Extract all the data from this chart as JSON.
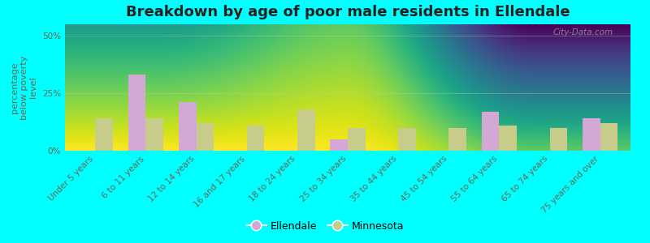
{
  "title": "Breakdown by age of poor male residents in Ellendale",
  "ylabel": "percentage\nbelow poverty\nlevel",
  "categories": [
    "Under 5 years",
    "6 to 11 years",
    "12 to 14 years",
    "16 and 17 years",
    "18 to 24 years",
    "25 to 34 years",
    "35 to 44 years",
    "45 to 54 years",
    "55 to 64 years",
    "65 to 74 years",
    "75 years and over"
  ],
  "ellendale": [
    0,
    33,
    21,
    0,
    0,
    5,
    0,
    0,
    17,
    0,
    14
  ],
  "minnesota": [
    14,
    14,
    12,
    11,
    18,
    10,
    10,
    10,
    11,
    10,
    12
  ],
  "ellendale_color": "#d4a8d4",
  "minnesota_color": "#c8cc8a",
  "bar_width": 0.35,
  "ylim": [
    0,
    55
  ],
  "yticks": [
    0,
    25,
    50
  ],
  "ytick_labels": [
    "0%",
    "25%",
    "50%"
  ],
  "plot_bg_top": "#f5f5e8",
  "plot_bg_bottom": "#dde8c0",
  "figure_bg": "#00ffff",
  "title_fontsize": 13,
  "axis_label_fontsize": 8,
  "tick_fontsize": 7.5,
  "legend_fontsize": 9,
  "watermark": "City-Data.com",
  "label_color": "#666655"
}
